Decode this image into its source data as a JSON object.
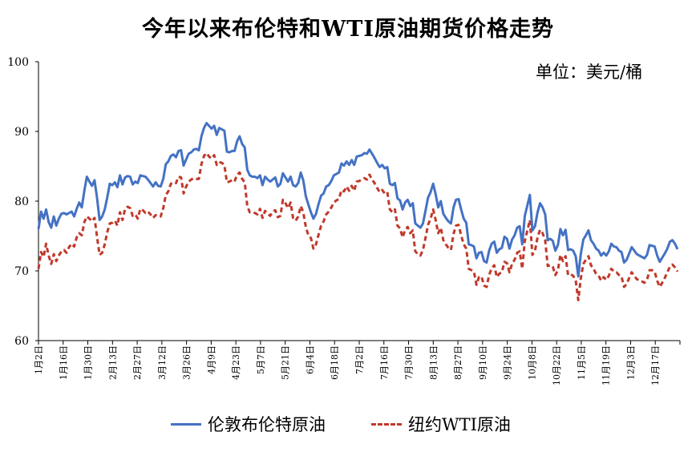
{
  "chart_data": {
    "type": "line",
    "title": "今年以来布伦特和WTI原油期货价格走势",
    "unit_note": "单位：美元/桶",
    "ylim": [
      60,
      100
    ],
    "yticks": [
      60,
      70,
      80,
      90,
      100
    ],
    "xtick_labels": [
      "1月2日",
      "1月16日",
      "1月30日",
      "2月13日",
      "2月27日",
      "3月12日",
      "3月26日",
      "4月9日",
      "4月23日",
      "5月7日",
      "5月21日",
      "6月4日",
      "6月18日",
      "7月2日",
      "7月16日",
      "7月30日",
      "8月13日",
      "8月27日",
      "9月10日",
      "9月24日",
      "10月8日",
      "10月22日",
      "11月5日",
      "11月19日",
      "12月3日",
      "12月17日"
    ],
    "xtick_count": 26,
    "series": [
      {
        "name": "伦敦布伦特原油",
        "color": "#4472c4",
        "style": "solid",
        "values": [
          76,
          78.5,
          77.5,
          78.8,
          77,
          76.2,
          77.8,
          76.5,
          77.5,
          78.2,
          78.3,
          78.1,
          78.3,
          78.5,
          77.8,
          78.9,
          79.8,
          79.1,
          81.5,
          83.5,
          82.8,
          82.2,
          83,
          80.5,
          77.3,
          77.8,
          78.8,
          80.5,
          82.5,
          82.3,
          82.7,
          82,
          83.7,
          82.4,
          83.4,
          83.6,
          83.5,
          82.4,
          82.8,
          82.6,
          83.7,
          83.6,
          83.5,
          83.1,
          82.6,
          82.1,
          82.7,
          82.2,
          82.1,
          83.2,
          85.3,
          85.7,
          86.5,
          86.7,
          86.3,
          87.2,
          87.3,
          85.1,
          86,
          86.8,
          87,
          87.4,
          87.5,
          87.3,
          89.3,
          90.5,
          91.2,
          90.8,
          90.4,
          90.8,
          89.5,
          90.5,
          90.3,
          90.1,
          87.1,
          87,
          87.2,
          87.2,
          88.6,
          89.3,
          88.2,
          87.7,
          84.5,
          83.7,
          83.5,
          83.5,
          83.3,
          83.7,
          82.3,
          83.5,
          83.1,
          82.8,
          83.1,
          83.4,
          82.1,
          82.5,
          84,
          83.4,
          82.8,
          83.5,
          82.3,
          82.1,
          82.6,
          84.1,
          83,
          80.7,
          79.5,
          78.4,
          77.5,
          78.2,
          79.6,
          80.8,
          81.1,
          82.1,
          82.3,
          82.9,
          83.7,
          83.9,
          84.1,
          85.4,
          85.1,
          85.7,
          85.2,
          85.9,
          85.2,
          86.4,
          86.5,
          86.6,
          86.9,
          86.8,
          87.4,
          86.8,
          86.2,
          85.5,
          84.9,
          85.2,
          84.7,
          84.9,
          82.5,
          82.3,
          82.6,
          80.4,
          80.1,
          78.8,
          79.8,
          80.2,
          79.3,
          79.7,
          76.8,
          76.5,
          76.2,
          76.8,
          78.6,
          80.5,
          81.3,
          82.5,
          81,
          79.1,
          80,
          78.2,
          77.6,
          77.1,
          76.8,
          79.1,
          80.2,
          80.3,
          78.8,
          77.5,
          76.9,
          73.8,
          73.7,
          73.5,
          71.8,
          72.6,
          72.7,
          71.4,
          71.2,
          72.9,
          73.9,
          74.2,
          72.6,
          73.1,
          73.3,
          74.9,
          74.6,
          73.2,
          74.5,
          75.1,
          76.2,
          76.4,
          73.8,
          77.9,
          79.4,
          80.9,
          75.8,
          76.4,
          78.4,
          79.7,
          79.1,
          78.1,
          74.4,
          74.6,
          74.3,
          72.9,
          73.7,
          76,
          75.1,
          75.9,
          73,
          73.1,
          72.9,
          72.1,
          70.7,
          72.4,
          74.5,
          75.1,
          75.8,
          74.4,
          73.9,
          73.2,
          72.9,
          72.2,
          72.6,
          72.2,
          72.8,
          73.9,
          73.5,
          73.4,
          72.9,
          72.7,
          71.2,
          71.6,
          72.5,
          73.4,
          72.9,
          72.4,
          72.2,
          72,
          71.8,
          72.3,
          73.7,
          73.6,
          73.5,
          72.2,
          71.3,
          71.9,
          72.5,
          73.2,
          74.2,
          74.4,
          73.9,
          73.1
        ],
        "min_marked": 69.2
      },
      {
        "name": "纽约WTI原油",
        "color": "#c0392b",
        "style": "dashed",
        "values": [
          70.3,
          72.7,
          72,
          73.9,
          72.2,
          71,
          72.4,
          71.4,
          72.2,
          72.8,
          73,
          72.6,
          73.4,
          73.9,
          73.5,
          74.8,
          75.4,
          75.1,
          77,
          77.8,
          77.5,
          77.1,
          77.6,
          74.9,
          72.3,
          72.6,
          73.8,
          75.5,
          76.8,
          76.9,
          77.2,
          76.5,
          78.4,
          77.3,
          78.9,
          79.2,
          79,
          77.9,
          78.1,
          77.5,
          78.9,
          78.7,
          78.3,
          78.5,
          78.1,
          77.6,
          78,
          77.8,
          77.8,
          79,
          80.9,
          81.4,
          82.5,
          82.7,
          82.6,
          83.5,
          83.4,
          81.1,
          82.1,
          82.8,
          83.1,
          83.3,
          83.2,
          83.2,
          85.3,
          86.5,
          86.9,
          86.4,
          86.1,
          86.6,
          85.2,
          85.6,
          85.5,
          85.2,
          82.7,
          82.8,
          83,
          82.8,
          83.8,
          84.1,
          83.2,
          82.7,
          79.3,
          78.4,
          78.4,
          78.3,
          78.1,
          78.9,
          77.6,
          78.6,
          78.2,
          77.9,
          78.5,
          78.7,
          77.7,
          77.9,
          80.2,
          79.7,
          79,
          79.8,
          77.6,
          77.2,
          77.8,
          79.3,
          78.4,
          76.3,
          75.1,
          74.7,
          73.2,
          73.8,
          75.2,
          76.5,
          77.1,
          78.1,
          78.5,
          79.1,
          79.8,
          80.1,
          80.3,
          81.6,
          81.4,
          82.1,
          81.5,
          82.2,
          81.5,
          82.8,
          82.9,
          83.1,
          83.3,
          83.1,
          83.8,
          83.1,
          82.6,
          81.9,
          81.3,
          81.6,
          81.1,
          81.3,
          78.8,
          78.4,
          78.8,
          76.5,
          76.1,
          74.8,
          75.9,
          76.3,
          75.4,
          75.8,
          72.8,
          72.4,
          72.2,
          73,
          74.7,
          76.6,
          77.5,
          78.8,
          77.3,
          75.4,
          76.2,
          74.4,
          73.8,
          73.3,
          73,
          75.3,
          76.5,
          76.6,
          75.1,
          73.8,
          73.2,
          70.3,
          70.1,
          69.9,
          68,
          69.1,
          69.2,
          67.9,
          67.7,
          69.4,
          70.4,
          70.8,
          69.1,
          69.6,
          69.8,
          71.3,
          71.1,
          69.8,
          71,
          71.6,
          72.6,
          72.8,
          70.3,
          74.3,
          75.8,
          77.3,
          72.3,
          72.9,
          74.8,
          75.9,
          75.4,
          74.4,
          70.7,
          70.8,
          70.6,
          69.4,
          70.1,
          72.3,
          71.4,
          72.1,
          69.4,
          69.5,
          69.3,
          68.6,
          67.3,
          68.9,
          71,
          71.6,
          72.1,
          70.8,
          70.3,
          69.6,
          69.3,
          68.6,
          69.1,
          68.7,
          69.3,
          70.3,
          69.9,
          69.8,
          69.4,
          69.2,
          67.7,
          68.1,
          69,
          69.8,
          69.3,
          68.8,
          68.7,
          68.5,
          68.3,
          68.7,
          70.1,
          70.1,
          69.9,
          68.6,
          67.7,
          68.3,
          69,
          69.8,
          70.6,
          70.9,
          70.5,
          69.9
        ],
        "min_marked": 65.8
      }
    ],
    "legend_position": "bottom",
    "grid": false
  }
}
